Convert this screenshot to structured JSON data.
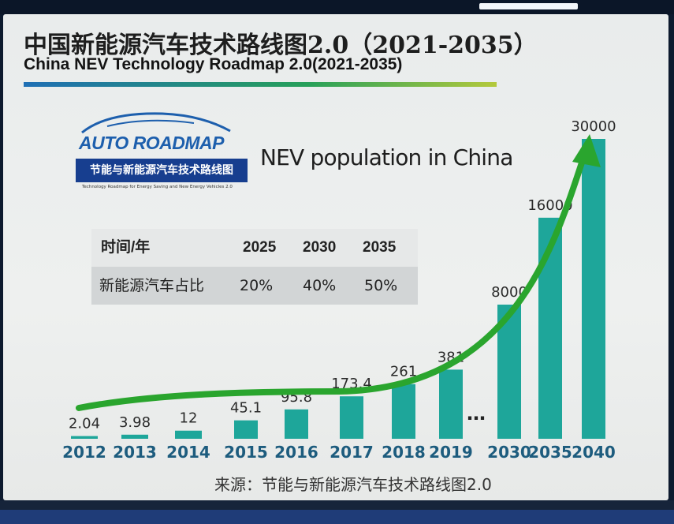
{
  "header": {
    "title_cn": "中国新能源汽车技术路线图2.0（2021-2035）",
    "title_en": "China NEV Technology Roadmap 2.0(2021-2035)"
  },
  "logo": {
    "name": "AUTO ROADMAP",
    "band_text": "节能与新能源汽车技术路线图",
    "caption": "Technology Roadmap for Energy Saving and New Energy Vehicles 2.0"
  },
  "table": {
    "header": [
      "时间/年",
      "2025",
      "2030",
      "2035"
    ],
    "row": [
      "新能源汽车占比",
      "20%",
      "40%",
      "50%"
    ]
  },
  "source": "来源：节能与新能源汽车技术路线图2.0",
  "colors": {
    "bar": "#1ea69a",
    "trend_arrow": "#2aa52e",
    "title_rule_start": "#1f6fb5",
    "title_rule_end": "#b4c93c",
    "logo_blue": "#173e8f"
  },
  "chart_data": {
    "type": "bar",
    "title": "NEV population in China",
    "categories": [
      "2012",
      "2013",
      "2014",
      "2015",
      "2016",
      "2017",
      "2018",
      "2019",
      "…",
      "2030",
      "2035",
      "2040"
    ],
    "series": [
      {
        "values": [
          2.04,
          3.98,
          12,
          45.1,
          95.8,
          173.4,
          261,
          381,
          null,
          8000,
          16000,
          30000
        ]
      }
    ],
    "value_labels": [
      "2.04",
      "3.98",
      "12",
      "45.1",
      "95.8",
      "173.4",
      "261",
      "381",
      "…",
      "8000",
      "16000",
      "30000"
    ],
    "scale": "non-linear (visual)",
    "trend_arrow": true,
    "grid": false,
    "legend": "none"
  }
}
